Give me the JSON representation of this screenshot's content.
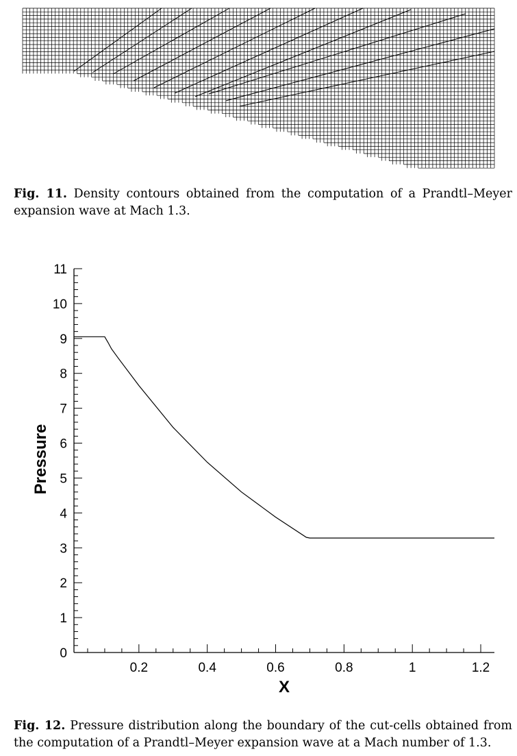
{
  "figure11": {
    "caption_label": "Fig. 11.",
    "caption_text": "Density contours obtained from the computation of a Prandtl–Meyer expansion wave at Mach 1.3."
  },
  "figure12": {
    "caption_label": "Fig. 12.",
    "caption_text": "Pressure distribution along the boundary of the cut-cells obtained from the computation of a Prandtl–Meyer expansion wave at a Mach number of 1.3."
  },
  "chart_data": {
    "type": "line",
    "title": "",
    "xlabel": "X",
    "ylabel": "Pressure",
    "xlim": [
      0.01,
      1.24
    ],
    "ylim": [
      0,
      11
    ],
    "xticks": [
      0.2,
      0.4,
      0.6,
      0.8,
      1,
      1.2
    ],
    "xtick_labels": [
      "0.2",
      "0.4",
      "0.6",
      "0.8",
      "1",
      "1.2"
    ],
    "yticks": [
      0,
      1,
      2,
      3,
      4,
      5,
      6,
      7,
      8,
      9,
      10,
      11
    ],
    "ytick_labels": [
      "0",
      "1",
      "2",
      "3",
      "4",
      "5",
      "6",
      "7",
      "8",
      "9",
      "10",
      "11"
    ],
    "grid": false,
    "series": [
      {
        "x": [
          0.01,
          0.1,
          0.11,
          0.12,
          0.14,
          0.2,
          0.3,
          0.4,
          0.5,
          0.6,
          0.69,
          0.7,
          1.24
        ],
        "y": [
          9.05,
          9.05,
          8.88,
          8.7,
          8.43,
          7.65,
          6.45,
          5.45,
          4.6,
          3.88,
          3.3,
          3.28,
          3.28
        ]
      }
    ]
  }
}
